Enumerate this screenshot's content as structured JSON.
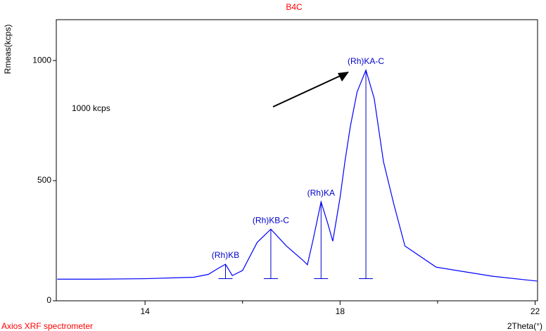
{
  "chart_data": {
    "type": "line",
    "title": "B4C",
    "y_label": "Rmeas(kcps)",
    "x_label": "2Theta(°)",
    "footer": "Axios XRF spectrometer",
    "annotation": "1000 kcps",
    "x": [
      12.2,
      13,
      14,
      15,
      15.3,
      15.5,
      15.65,
      15.79,
      16.0,
      16.3,
      16.58,
      16.9,
      17.23,
      17.33,
      17.45,
      17.61,
      17.75,
      17.85,
      18.0,
      18.1,
      18.21,
      18.35,
      18.53,
      18.7,
      18.89,
      19.1,
      19.33,
      19.97,
      21.13,
      22.04
    ],
    "series": [
      {
        "name": "Rmeas",
        "color": "#0000ff",
        "values": [
          90,
          90,
          92,
          98,
          110,
          135,
          152,
          105,
          126,
          243,
          298,
          228,
          170,
          150,
          257,
          412,
          320,
          248,
          430,
          580,
          725,
          870,
          960,
          842,
          579,
          404,
          228,
          140,
          102,
          82
        ]
      }
    ],
    "peaks": [
      {
        "label": "(Rh)KB",
        "x": 15.65,
        "value": 152
      },
      {
        "label": "(Rh)KB-C",
        "x": 16.58,
        "value": 298
      },
      {
        "label": "(Rh)KA",
        "x": 17.61,
        "value": 412
      },
      {
        "label": "(Rh)KA-C",
        "x": 18.53,
        "value": 960
      }
    ],
    "marker_base": 92,
    "xlim": [
      12.18,
      22.05
    ],
    "ylim": [
      0,
      1170
    ],
    "xticks": [
      14,
      18,
      22
    ],
    "xminorticks": [
      16,
      20
    ],
    "yticks": [
      0,
      500,
      1000
    ]
  }
}
